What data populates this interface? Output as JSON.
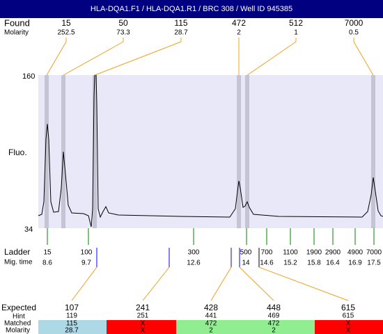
{
  "title": "HLA-DQA1.F1 / HLA-DQA1.R1 / BRC 308 / Well ID 945385",
  "found": {
    "label": "Found",
    "molarity_label": "Molarity",
    "peaks": [
      {
        "size": "15",
        "molarity": "252.5"
      },
      {
        "size": "50",
        "molarity": "73.3"
      },
      {
        "size": "115",
        "molarity": "28.7"
      },
      {
        "size": "472",
        "molarity": "2"
      },
      {
        "size": "512",
        "molarity": "1"
      },
      {
        "size": "7000",
        "molarity": "0.5"
      }
    ]
  },
  "plot": {
    "y_label": "Fluo.",
    "y_max": "160",
    "y_min": "34"
  },
  "ladder": {
    "label": "Ladder",
    "time_label": "Mig. time",
    "items": [
      {
        "size": "15",
        "time": "8.6"
      },
      {
        "size": "100",
        "time": "9.7"
      },
      {
        "size": "300",
        "time": "12.6"
      },
      {
        "size": "500",
        "time": "14"
      },
      {
        "size": "700",
        "time": "14.6"
      },
      {
        "size": "1100",
        "time": "15.2"
      },
      {
        "size": "1900",
        "time": "15.8"
      },
      {
        "size": "2900",
        "time": "16.4"
      },
      {
        "size": "4900",
        "time": "16.9"
      },
      {
        "size": "7000",
        "time": "17.5"
      }
    ]
  },
  "expected": {
    "label": "Expected",
    "hint_label": "Hint",
    "matched_label": "Matched",
    "molarity_label": "Molarity",
    "items": [
      {
        "size": "107",
        "hint": "119",
        "matched": "115",
        "molarity": "28.7",
        "color": "#add8e6"
      },
      {
        "size": "241",
        "hint": "251",
        "matched": "X",
        "molarity": "X",
        "color": "#ff0000"
      },
      {
        "size": "428",
        "hint": "441",
        "matched": "472",
        "molarity": "2",
        "color": "#90ee90"
      },
      {
        "size": "448",
        "hint": "469",
        "matched": "472",
        "molarity": "2",
        "color": "#90ee90"
      },
      {
        "size": "615",
        "hint": "615",
        "matched": "X",
        "molarity": "X",
        "color": "#ff0000"
      }
    ]
  }
}
